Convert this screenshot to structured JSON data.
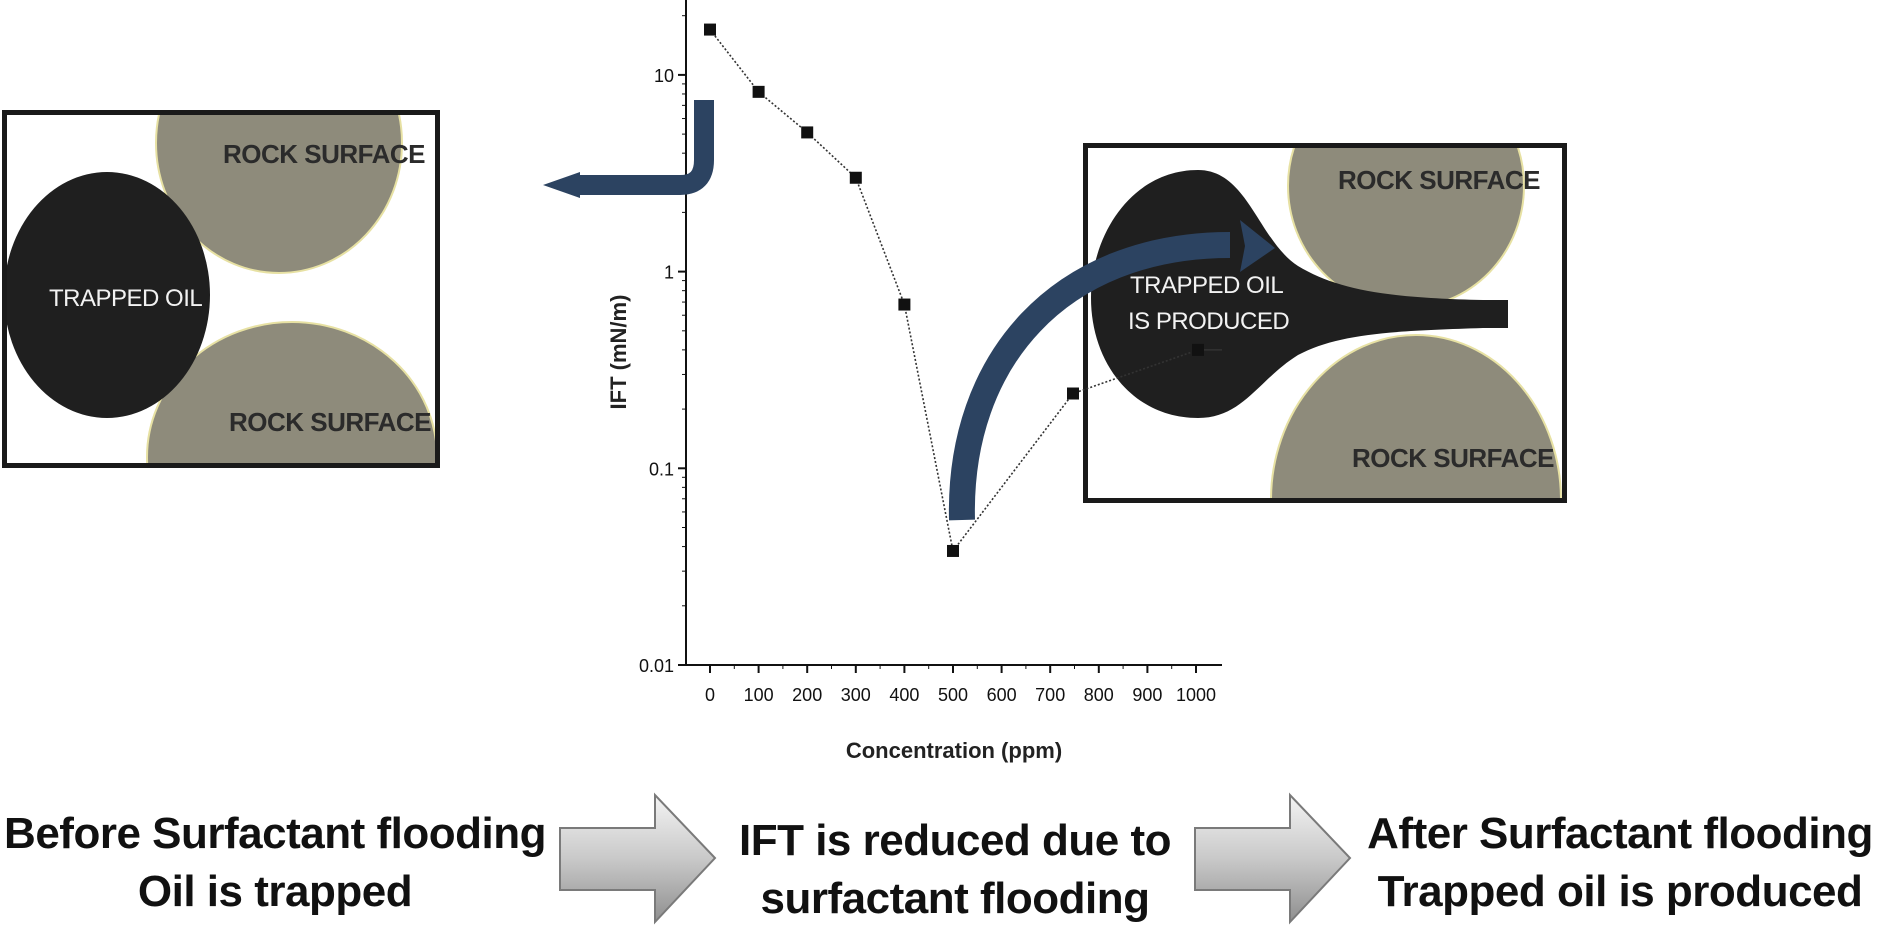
{
  "colors": {
    "rock": "#8e8b7b",
    "rock_edge": "#e7e1a3",
    "oil": "#1f1f1f",
    "frame": "#1a1a1a",
    "curved_arrow": "#2c4361",
    "chart_line": "#333333",
    "block_arrow": "#bdbdbd"
  },
  "left_panel": {
    "rock_top_label": "ROCK SURFACE",
    "rock_bottom_label": "ROCK SURFACE",
    "oil_label": "TRAPPED OIL"
  },
  "right_panel": {
    "rock_top_label": "ROCK SURFACE",
    "rock_bottom_label": "ROCK SURFACE",
    "oil_label_line1": "TRAPPED OIL",
    "oil_label_line2": "IS PRODUCED"
  },
  "captions": {
    "left_line1": "Before Surfactant flooding",
    "left_line2": "Oil is trapped",
    "middle_line1": "IFT is reduced due to",
    "middle_line2": "surfactant flooding",
    "right_line1": "After Surfactant flooding",
    "right_line2": "Trapped oil is produced"
  },
  "icons": {
    "left_connector": "curved-arrow-left-icon",
    "right_connector": "curved-arrow-up-right-icon",
    "caption_arrows": "block-arrow-right-icon"
  },
  "chart_data": {
    "type": "line",
    "xlabel": "Concentration (ppm)",
    "ylabel": "IFT (mN/m)",
    "y_scale": "log",
    "ylim": [
      0.01,
      30
    ],
    "x_tick_labels": [
      "0",
      "100",
      "200",
      "300",
      "400",
      "500",
      "600",
      "700",
      "800",
      "900",
      "1000"
    ],
    "y_tick_labels": [
      "10",
      "1",
      "0.1",
      "0.01"
    ],
    "y_tick_values": [
      10,
      1,
      0.1,
      0.01
    ],
    "series": [
      {
        "x": [
          0,
          100,
          200,
          300,
          400,
          500,
          750,
          1000
        ],
        "values": [
          17,
          8.2,
          5.1,
          3.0,
          0.68,
          0.038,
          0.24,
          0.4
        ]
      }
    ],
    "grid": false,
    "legend": "none"
  }
}
